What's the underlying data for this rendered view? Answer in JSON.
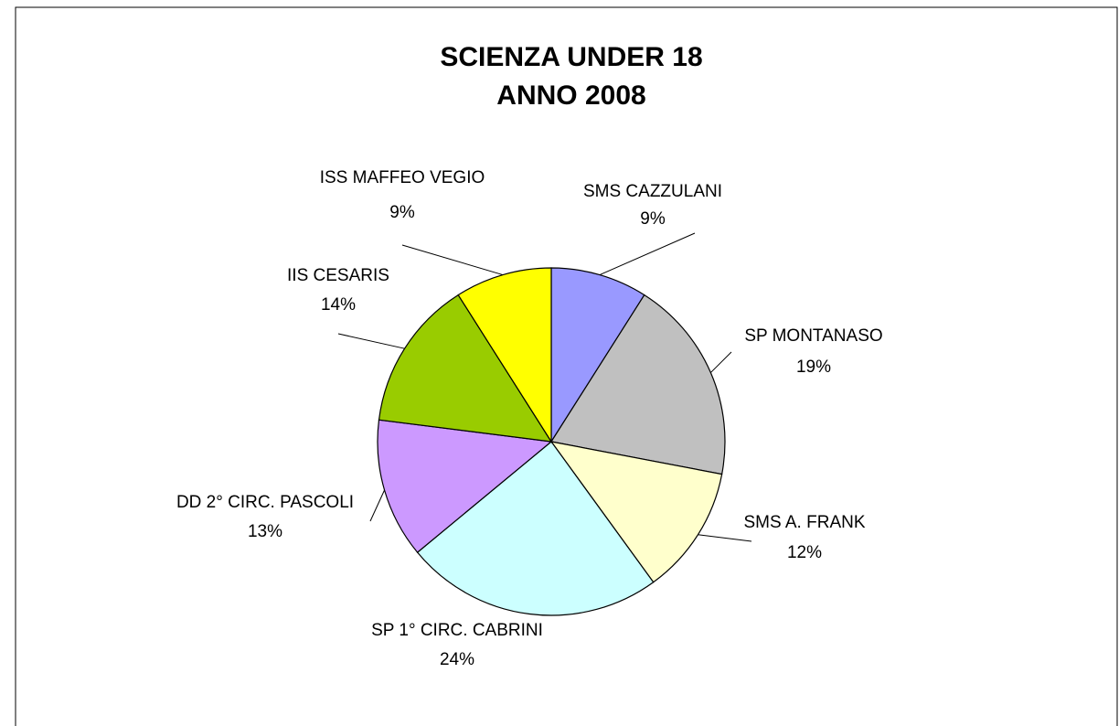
{
  "chart_data": {
    "type": "pie",
    "title": [
      "SCIENZA UNDER 18",
      "ANNO 2008"
    ],
    "categories": [
      "SMS CAZZULANI",
      "SP MONTANASO",
      "SMS A. FRANK",
      "SP 1° CIRC. CABRINI",
      "DD 2° CIRC. PASCOLI",
      "IIS CESARIS",
      "ISS MAFFEO VEGIO"
    ],
    "values": [
      9,
      19,
      12,
      24,
      13,
      14,
      9
    ],
    "value_labels": [
      "9%",
      "19%",
      "12%",
      "24%",
      "13%",
      "14%",
      "9%"
    ],
    "colors": [
      "#9999ff",
      "#c0c0c0",
      "#ffffcc",
      "#ccffff",
      "#cc99ff",
      "#99cc00",
      "#ffff00"
    ]
  }
}
